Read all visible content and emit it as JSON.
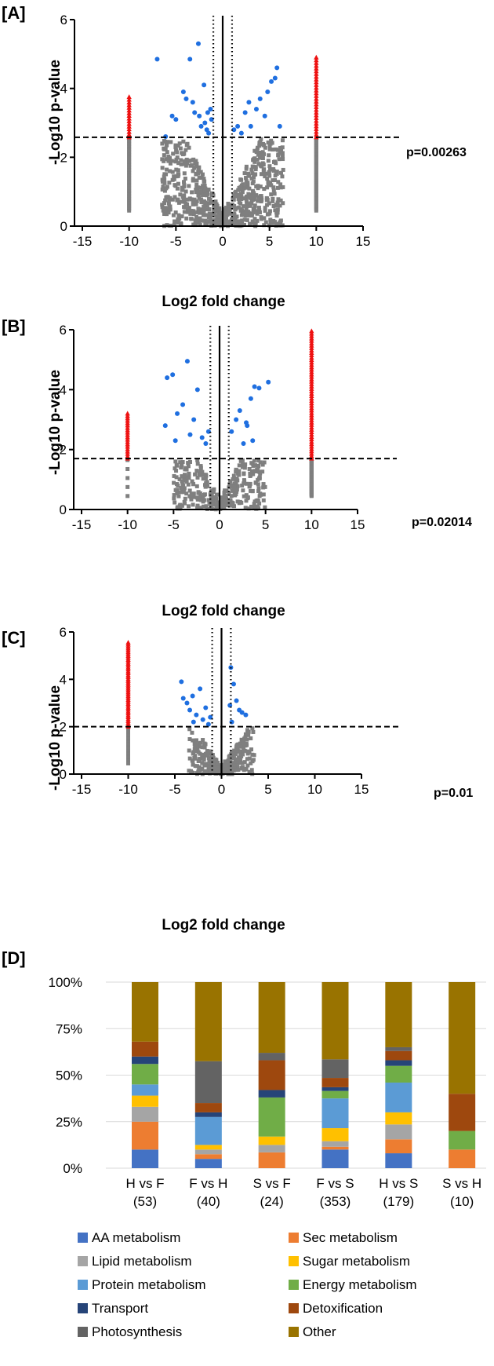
{
  "colors": {
    "ns": "#7f7f7f",
    "sig": "#1f6fe0",
    "extreme": "#ee1111",
    "axis": "#000000"
  },
  "chart_data": [
    {
      "type": "scatter",
      "panel_label": "[A]",
      "xlabel": "Log2 fold change",
      "ylabel": "-Log10 p-value",
      "xlim": [
        -15,
        15
      ],
      "ylim": [
        0,
        6
      ],
      "xticks": [
        "-15",
        "-10",
        "-5",
        "0",
        "5",
        "10",
        "15"
      ],
      "yticks": [
        "0",
        "2",
        "4",
        "6"
      ],
      "threshold_label": "p=0.00263",
      "threshold_y": 2.58,
      "fold_lines": [
        -1,
        1
      ],
      "extreme_low_max": 3.75,
      "extreme_high_max": 4.9,
      "nonsig_low_count": 45,
      "nonsig_high_count": 55,
      "sig_points": [
        [
          -7,
          4.85
        ],
        [
          -6.1,
          2.6
        ],
        [
          -5.4,
          3.2
        ],
        [
          -5,
          3.1
        ],
        [
          -4.2,
          3.9
        ],
        [
          -3.9,
          3.7
        ],
        [
          -3.5,
          4.85
        ],
        [
          -3.2,
          3.6
        ],
        [
          -3,
          3.3
        ],
        [
          -2.6,
          5.3
        ],
        [
          -2.5,
          3.2
        ],
        [
          -2.3,
          2.9
        ],
        [
          -2,
          4.1
        ],
        [
          -1.9,
          3
        ],
        [
          -1.7,
          2.8
        ],
        [
          -1.6,
          3.3
        ],
        [
          -1.5,
          2.7
        ],
        [
          -1.3,
          3.4
        ],
        [
          -1.2,
          3.1
        ],
        [
          1.2,
          2.8
        ],
        [
          1.6,
          2.9
        ],
        [
          2,
          2.7
        ],
        [
          2.4,
          3.3
        ],
        [
          2.8,
          3.6
        ],
        [
          3,
          2.9
        ],
        [
          3.6,
          3.4
        ],
        [
          4,
          3.7
        ],
        [
          4.5,
          3.2
        ],
        [
          4.8,
          3.9
        ],
        [
          5.2,
          4.2
        ],
        [
          5.6,
          4.3
        ],
        [
          5.8,
          4.6
        ],
        [
          6.1,
          2.9
        ]
      ],
      "nonsig_spread": 6.5,
      "nonsig_count": 700
    },
    {
      "type": "scatter",
      "panel_label": "[B]",
      "xlabel": "Log2 fold change",
      "ylabel": "-Log10 p-value",
      "xlim": [
        -15,
        15
      ],
      "ylim": [
        0,
        6
      ],
      "xticks": [
        "-15",
        "-10",
        "-5",
        "0",
        "5",
        "10",
        "15"
      ],
      "yticks": [
        "0",
        "2",
        "4",
        "6"
      ],
      "threshold_label": "p=0.02014",
      "threshold_y": 1.7,
      "fold_lines": [
        -1,
        1
      ],
      "extreme_low_max": 3.2,
      "extreme_high_max": 5.95,
      "nonsig_low_count": 5,
      "nonsig_high_count": 60,
      "sig_points": [
        [
          -5.7,
          4.4
        ],
        [
          -5.1,
          4.5
        ],
        [
          -4.6,
          3.2
        ],
        [
          -4,
          3.5
        ],
        [
          -3.5,
          4.95
        ],
        [
          -3.2,
          2.5
        ],
        [
          -2.8,
          3
        ],
        [
          -2.4,
          4
        ],
        [
          -1.9,
          2.4
        ],
        [
          -1.5,
          2.2
        ],
        [
          -1.2,
          2.6
        ],
        [
          -5.9,
          2.8
        ],
        [
          -4.8,
          2.3
        ],
        [
          1.3,
          2.6
        ],
        [
          1.8,
          3
        ],
        [
          2.2,
          3.3
        ],
        [
          2.6,
          2.2
        ],
        [
          3,
          2.8
        ],
        [
          3.4,
          3.7
        ],
        [
          3.8,
          4.1
        ],
        [
          4.3,
          4.05
        ],
        [
          5.3,
          4.25
        ],
        [
          3.6,
          2.3
        ],
        [
          2.9,
          2.9
        ]
      ],
      "nonsig_spread": 5,
      "nonsig_count": 320
    },
    {
      "type": "scatter",
      "panel_label": "[C]",
      "xlabel": "Log2 fold change",
      "ylabel": "-Log10 p-value",
      "xlim": [
        -15,
        15
      ],
      "ylim": [
        0,
        6
      ],
      "xticks": [
        "-15",
        "-10",
        "-5",
        "0",
        "5",
        "10",
        "15"
      ],
      "yticks": [
        "0",
        "2",
        "4",
        "6"
      ],
      "threshold_label": "p=0.01",
      "threshold_y": 2.0,
      "fold_lines": [
        -1,
        1
      ],
      "extreme_low_max": 5.55,
      "extreme_high_max": 0,
      "nonsig_low_count": 60,
      "nonsig_high_count": 0,
      "sig_points": [
        [
          -4.3,
          3.9
        ],
        [
          -4.1,
          3.2
        ],
        [
          -3.7,
          3
        ],
        [
          -3.4,
          2.7
        ],
        [
          -3.1,
          3.3
        ],
        [
          -2.7,
          2.5
        ],
        [
          -2.3,
          3.6
        ],
        [
          -2,
          2.3
        ],
        [
          -1.7,
          2.8
        ],
        [
          -1.4,
          2.1
        ],
        [
          -1.2,
          2.4
        ],
        [
          -3,
          2.2
        ],
        [
          1,
          4.5
        ],
        [
          1.3,
          3.8
        ],
        [
          1.6,
          3.1
        ],
        [
          1.9,
          2.7
        ],
        [
          2.2,
          2.6
        ],
        [
          2.6,
          2.5
        ],
        [
          1.1,
          2.2
        ],
        [
          0.9,
          2.9
        ]
      ],
      "nonsig_spread": 3.5,
      "nonsig_count": 300
    },
    {
      "type": "bar",
      "stacked": true,
      "panel_label": "[D]",
      "yticks": [
        "0%",
        "25%",
        "50%",
        "75%",
        "100%"
      ],
      "categories": [
        {
          "name": "H vs  F",
          "count": "(53)"
        },
        {
          "name": "F vs H",
          "count": "(40)"
        },
        {
          "name": "S vs F",
          "count": "(24)"
        },
        {
          "name": "F vs S",
          "count": "(353)"
        },
        {
          "name": "H vs S",
          "count": "(179)"
        },
        {
          "name": "S vs H",
          "count": "(10)"
        }
      ],
      "series": [
        {
          "name": "AA metabolism",
          "color": "#4472c4",
          "values": [
            10,
            5,
            0,
            10,
            8,
            0
          ]
        },
        {
          "name": "Sec metabolism",
          "color": "#ed7d31",
          "values": [
            15,
            2.5,
            8.5,
            1.5,
            7.5,
            10
          ]
        },
        {
          "name": "Lipid metabolism",
          "color": "#a5a5a5",
          "values": [
            8,
            2.5,
            4,
            3,
            8,
            0
          ]
        },
        {
          "name": "Sugar metabolism",
          "color": "#ffc000",
          "values": [
            6,
            2.5,
            4.5,
            7,
            6.5,
            0
          ]
        },
        {
          "name": "Protein metabolism",
          "color": "#5b9bd5",
          "values": [
            6,
            15,
            0,
            16,
            16,
            0
          ]
        },
        {
          "name": "Energy metabolism",
          "color": "#70ad47",
          "values": [
            11,
            0,
            21,
            4,
            9,
            10
          ]
        },
        {
          "name": "Transport",
          "color": "#264478",
          "values": [
            4,
            2.5,
            4,
            2,
            3,
            0
          ]
        },
        {
          "name": "Detoxification",
          "color": "#9e480e",
          "values": [
            8,
            5,
            16,
            5,
            5,
            20
          ]
        },
        {
          "name": "Photosynthesis",
          "color": "#636363",
          "values": [
            0,
            22.5,
            4,
            10,
            2,
            0
          ]
        },
        {
          "name": "Other",
          "color": "#997300",
          "values": [
            32,
            42.5,
            38,
            41.5,
            35,
            60
          ]
        }
      ]
    }
  ]
}
